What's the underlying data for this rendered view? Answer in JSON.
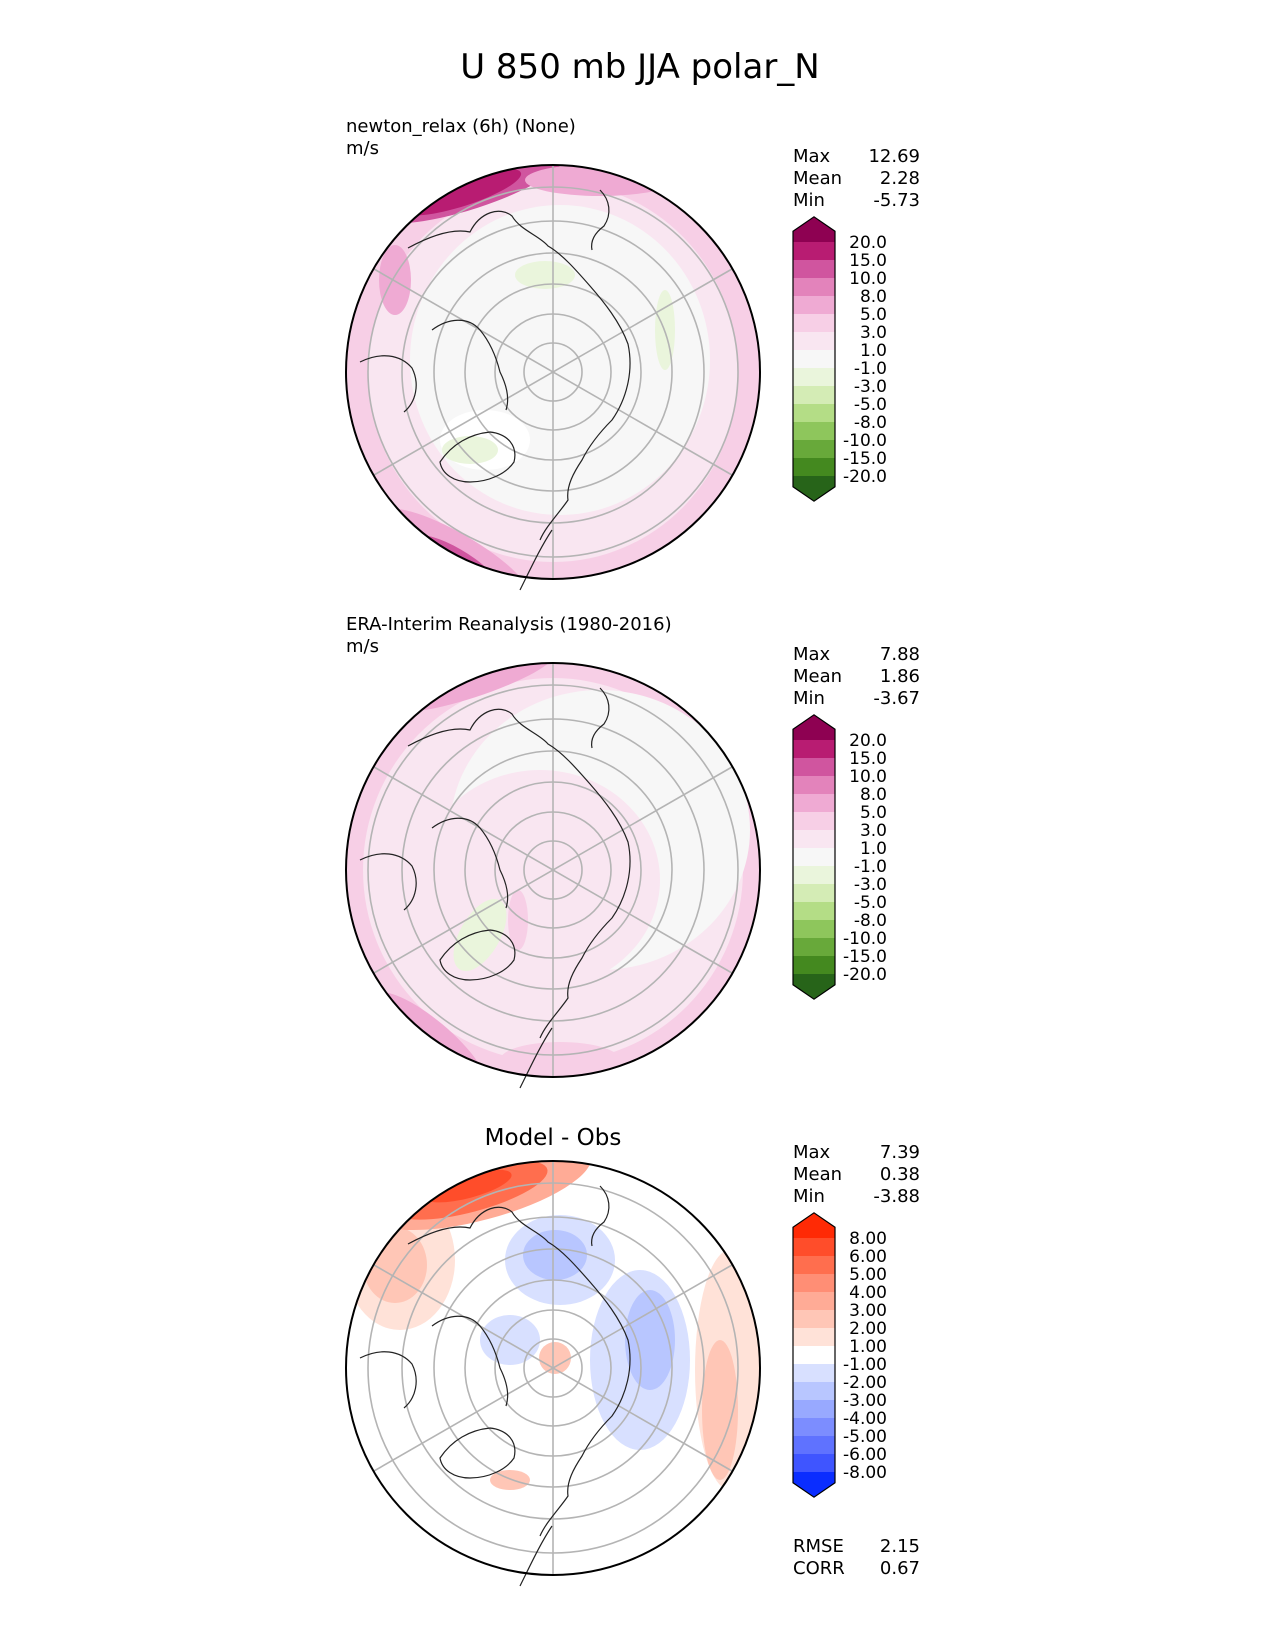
{
  "figure_title": "U 850 mb JJA polar_N",
  "chart_data": [
    {
      "type": "heatmap",
      "projection": "north polar stereographic",
      "title": "newton_relax (6h) (None)",
      "units": "m/s",
      "stats": [
        {
          "label": "Max",
          "value": "12.69"
        },
        {
          "label": "Mean",
          "value": "2.28"
        },
        {
          "label": "Min",
          "value": "-5.73"
        }
      ],
      "colorbar": {
        "levels": [
          "20.0",
          "15.0",
          "10.0",
          "8.0",
          "5.0",
          "3.0",
          "1.0",
          "-1.0",
          "-3.0",
          "-5.0",
          "-8.0",
          "-10.0",
          "-15.0",
          "-20.0"
        ],
        "colors": [
          "#8e0152",
          "#b81c72",
          "#d0559f",
          "#e383bb",
          "#efaad3",
          "#f7cfe6",
          "#f9e6f1",
          "#f7f7f7",
          "#eaf5dc",
          "#d4ecb5",
          "#b4dd86",
          "#8ec65c",
          "#68a93a",
          "#44891f",
          "#276419"
        ]
      },
      "stats_extra": []
    },
    {
      "type": "heatmap",
      "projection": "north polar stereographic",
      "title": "ERA-Interim Reanalysis (1980-2016)",
      "units": "m/s",
      "stats": [
        {
          "label": "Max",
          "value": "7.88"
        },
        {
          "label": "Mean",
          "value": "1.86"
        },
        {
          "label": "Min",
          "value": "-3.67"
        }
      ],
      "colorbar": {
        "levels": [
          "20.0",
          "15.0",
          "10.0",
          "8.0",
          "5.0",
          "3.0",
          "1.0",
          "-1.0",
          "-3.0",
          "-5.0",
          "-8.0",
          "-10.0",
          "-15.0",
          "-20.0"
        ],
        "colors": [
          "#8e0152",
          "#b81c72",
          "#d0559f",
          "#e383bb",
          "#efaad3",
          "#f7cfe6",
          "#f9e6f1",
          "#f7f7f7",
          "#eaf5dc",
          "#d4ecb5",
          "#b4dd86",
          "#8ec65c",
          "#68a93a",
          "#44891f",
          "#276419"
        ]
      },
      "stats_extra": []
    },
    {
      "type": "heatmap",
      "projection": "north polar stereographic",
      "title": "Model - Obs",
      "units": "",
      "stats": [
        {
          "label": "Max",
          "value": "7.39"
        },
        {
          "label": "Mean",
          "value": "0.38"
        },
        {
          "label": "Min",
          "value": "-3.88"
        }
      ],
      "colorbar": {
        "levels": [
          "8.00",
          "6.00",
          "5.00",
          "4.00",
          "3.00",
          "2.00",
          "1.00",
          "-1.00",
          "-2.00",
          "-3.00",
          "-4.00",
          "-5.00",
          "-6.00",
          "-8.00"
        ],
        "colors": [
          "#ff2a05",
          "#ff4d2a",
          "#ff6e4e",
          "#ff8e75",
          "#ffab96",
          "#ffc6b6",
          "#ffe2d8",
          "#ffffff",
          "#d8e0ff",
          "#b8c6ff",
          "#98a9ff",
          "#7c8dff",
          "#5f72ff",
          "#3f55ff",
          "#0a2dff"
        ]
      },
      "stats_extra": [
        {
          "label": "RMSE",
          "value": "2.15"
        },
        {
          "label": "CORR",
          "value": "0.67"
        }
      ]
    }
  ]
}
